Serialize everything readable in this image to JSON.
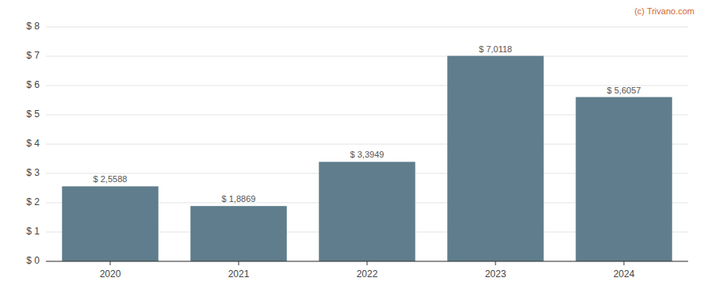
{
  "chart_data": {
    "type": "bar",
    "categories": [
      "2020",
      "2021",
      "2022",
      "2023",
      "2024"
    ],
    "values": [
      2.5588,
      1.8869,
      3.3949,
      7.0118,
      5.6057
    ],
    "value_labels": [
      "$ 2,5588",
      "$ 1,8869",
      "$ 3,3949",
      "$ 7,0118",
      "$ 5,6057"
    ],
    "data_labels": true,
    "color": "#5f7d8c",
    "ylim": [
      0,
      8
    ],
    "yticks": [
      {
        "value": 0,
        "label": "$ 0"
      },
      {
        "value": 1,
        "label": "$ 1"
      },
      {
        "value": 2,
        "label": "$ 2"
      },
      {
        "value": 3,
        "label": "$ 3"
      },
      {
        "value": 4,
        "label": "$ 4"
      },
      {
        "value": 5,
        "label": "$ 5"
      },
      {
        "value": 6,
        "label": "$ 6"
      },
      {
        "value": 7,
        "label": "$ 7"
      },
      {
        "value": 8,
        "label": "$ 8"
      }
    ],
    "grid": true,
    "annotations": [
      {
        "text": "(c) Trivano.com",
        "color": "#d4662a"
      }
    ]
  }
}
